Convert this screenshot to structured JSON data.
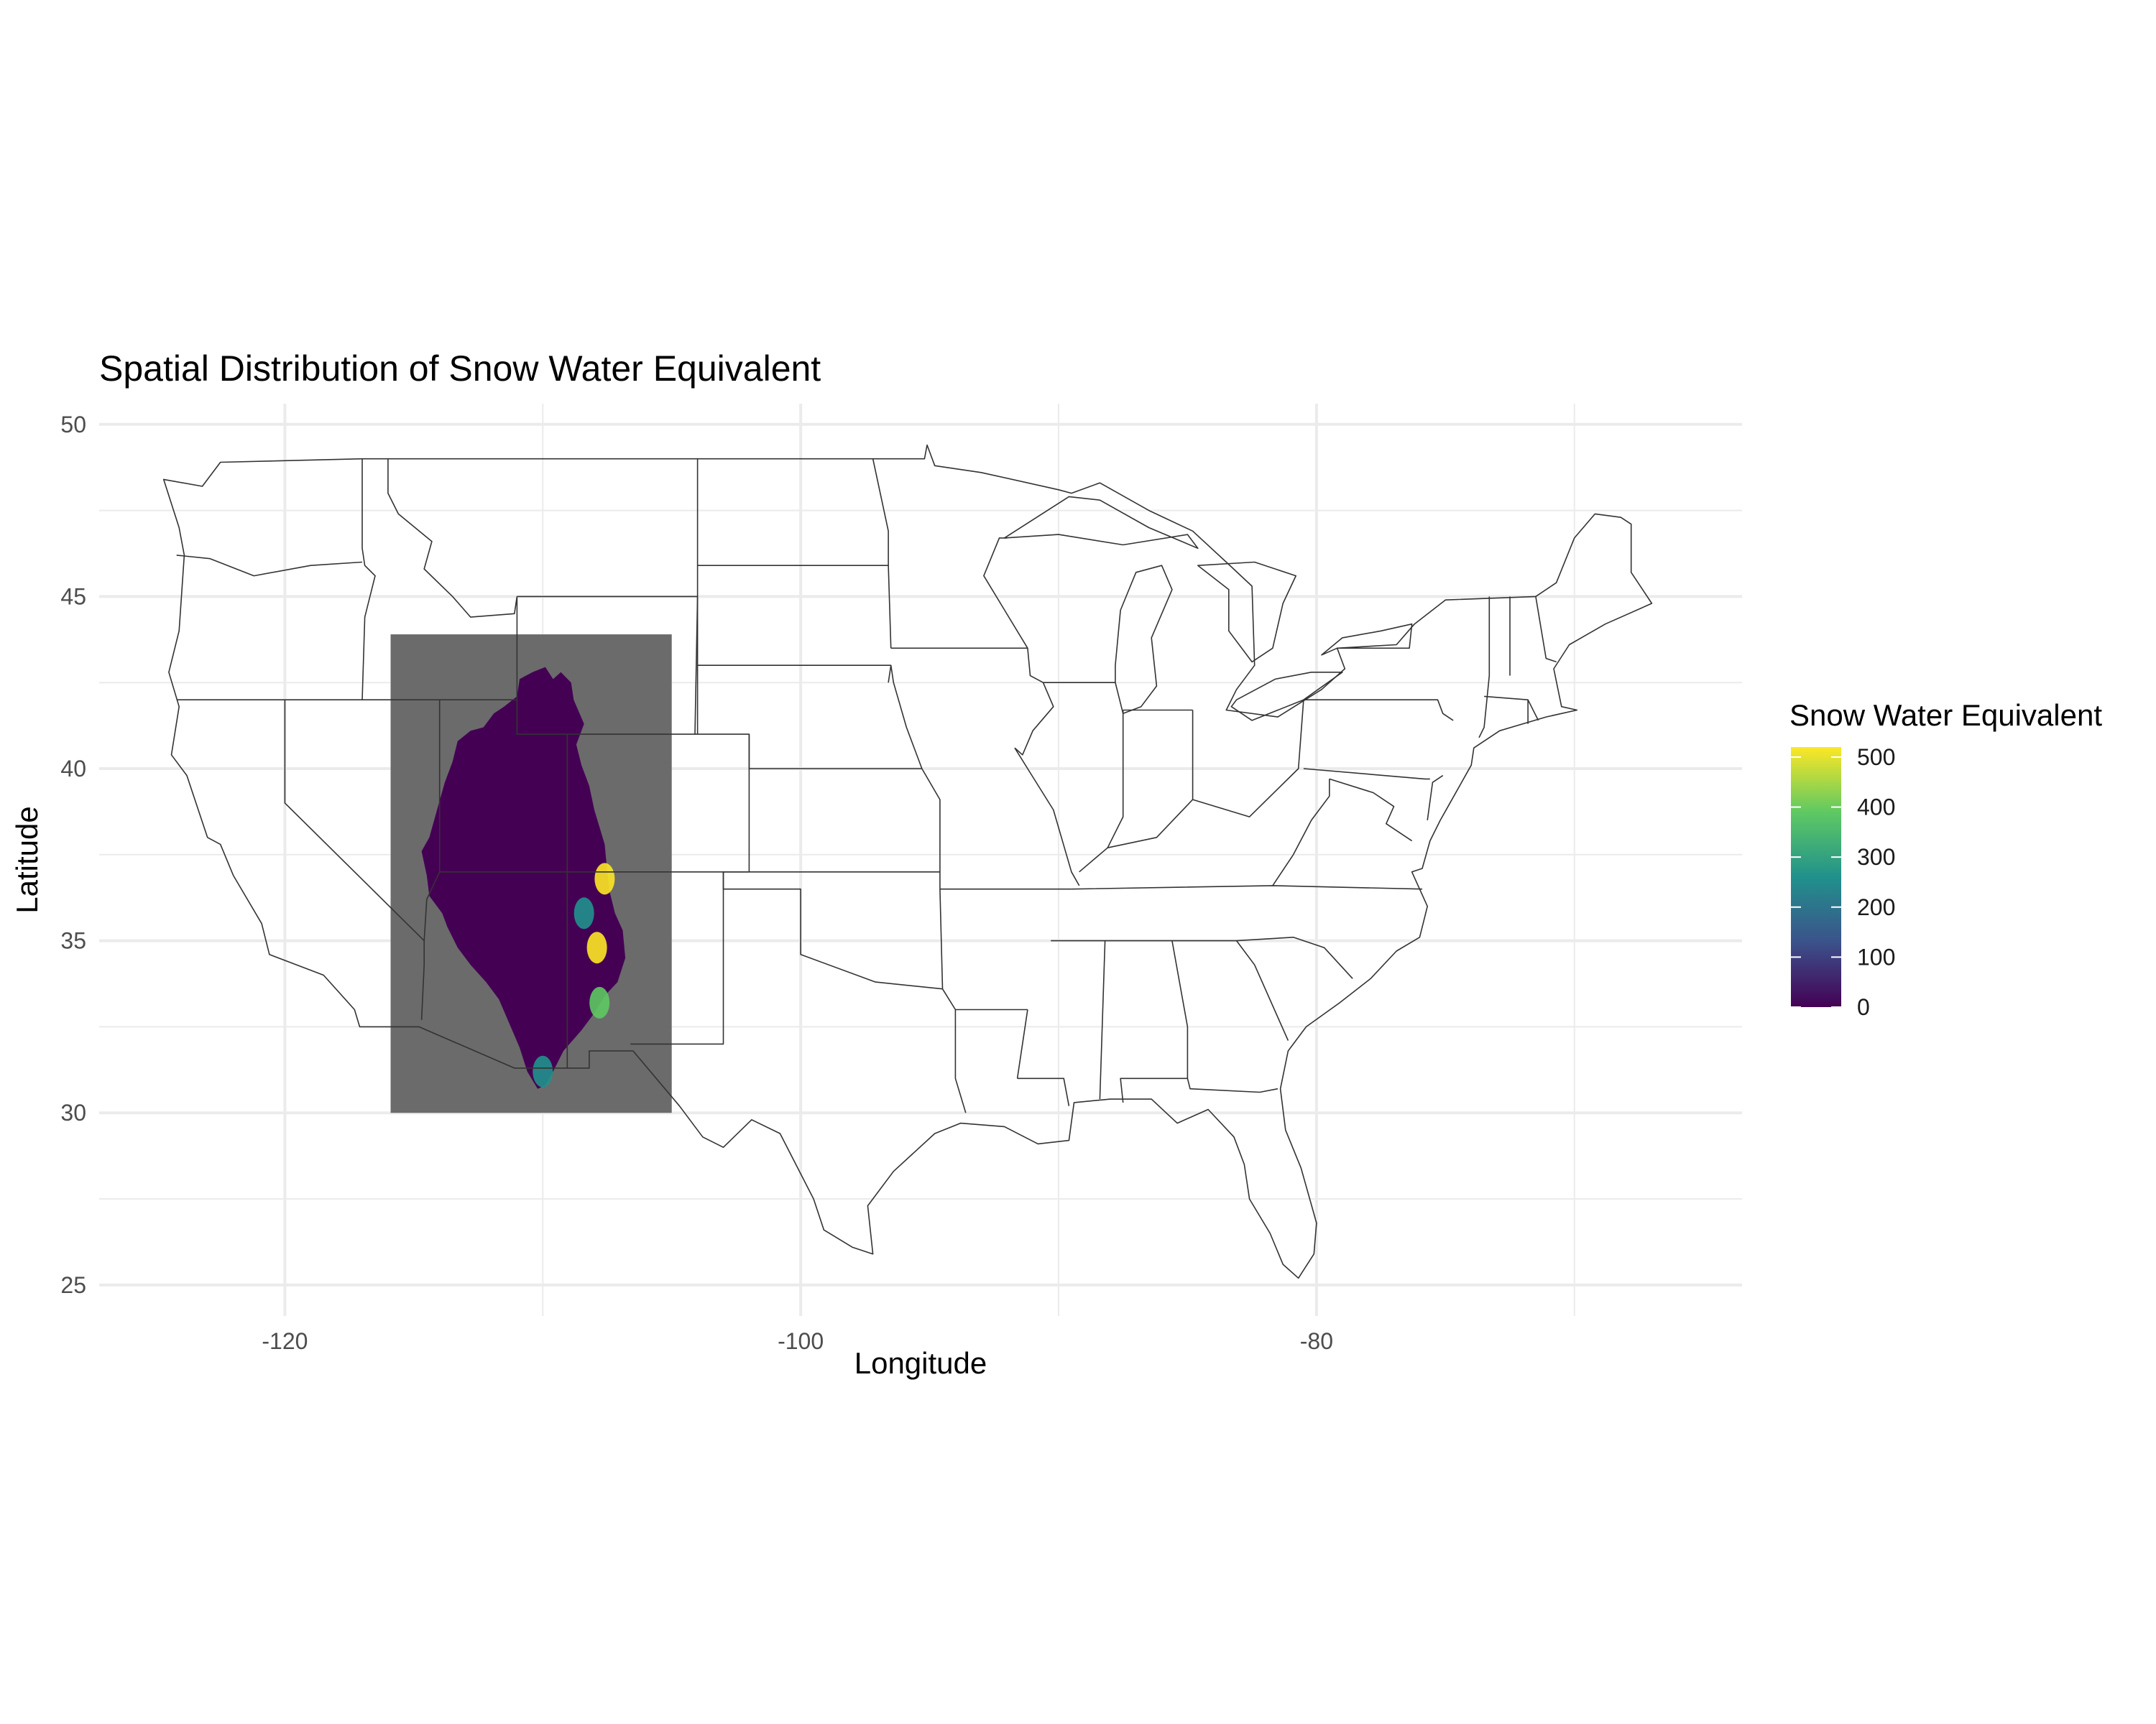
{
  "chart_data": {
    "type": "heatmap",
    "title": "Spatial Distribution of Snow Water Equivalent",
    "xlabel": "Longitude",
    "ylabel": "Latitude",
    "xlim": [
      -127.2,
      -63.5
    ],
    "ylim": [
      24.1,
      50.6
    ],
    "x_ticks": [
      {
        "value": -120,
        "label": "-120"
      },
      {
        "value": -100,
        "label": "-100"
      },
      {
        "value": -80,
        "label": "-80"
      }
    ],
    "y_ticks": [
      {
        "value": 25,
        "label": "25"
      },
      {
        "value": 30,
        "label": "30"
      },
      {
        "value": 35,
        "label": "35"
      },
      {
        "value": 40,
        "label": "40"
      },
      {
        "value": 45,
        "label": "45"
      },
      {
        "value": 50,
        "label": "50"
      }
    ],
    "x_minor": [
      -110,
      -90,
      -70
    ],
    "y_minor": [
      27.5,
      32.5,
      37.5,
      42.5,
      47.5
    ],
    "grid": true,
    "basemap": "US state boundaries",
    "raster_extent": {
      "lon": [
        -115.9,
        -105.0
      ],
      "lat": [
        30.0,
        43.9
      ]
    },
    "raster_na_color": "#6b6b6b",
    "basin_extent": {
      "lon": [
        -113.1,
        -107.6
      ],
      "lat": [
        30.6,
        42.9
      ]
    },
    "fill_scale": {
      "name": "Snow Water Equivalent",
      "palette": "viridis",
      "range": [
        0,
        520
      ],
      "colors": [
        "#440154",
        "#3b528b",
        "#21918c",
        "#5ec962",
        "#fde725"
      ],
      "breaks": [
        0,
        100,
        200,
        300,
        400,
        500
      ],
      "labels": [
        "0",
        "100",
        "200",
        "300",
        "400",
        "500"
      ]
    },
    "high_value_areas": [
      {
        "lon": -107.6,
        "lat": 36.8,
        "swe": 480
      },
      {
        "lon": -107.9,
        "lat": 34.8,
        "swe": 460
      },
      {
        "lon": -107.8,
        "lat": 33.2,
        "swe": 420
      },
      {
        "lon": -110.0,
        "lat": 31.2,
        "swe": 300
      },
      {
        "lon": -108.4,
        "lat": 35.8,
        "swe": 260
      }
    ],
    "legend_position": "right"
  }
}
